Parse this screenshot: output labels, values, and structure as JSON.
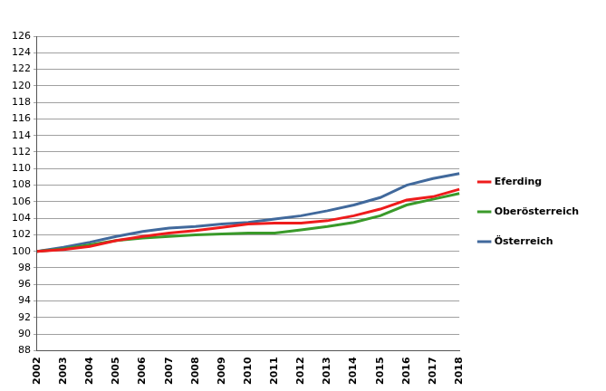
{
  "chart_data": {
    "type": "line",
    "categories": [
      "2002",
      "2003",
      "2004",
      "2005",
      "2006",
      "2007",
      "2008",
      "2009",
      "2010",
      "2011",
      "2012",
      "2013",
      "2014",
      "2015",
      "2016",
      "2017",
      "2018"
    ],
    "series": [
      {
        "name": "Eferding",
        "color": "#ee1c1c",
        "values": [
          100,
          100.2,
          100.6,
          101.3,
          101.8,
          102.2,
          102.5,
          102.9,
          103.3,
          103.4,
          103.4,
          103.7,
          104.3,
          105.1,
          106.2,
          106.6,
          107.5
        ]
      },
      {
        "name": "Oberösterreich",
        "color": "#3a9a2a",
        "values": [
          100,
          100.3,
          100.8,
          101.3,
          101.6,
          101.8,
          102.0,
          102.1,
          102.2,
          102.2,
          102.6,
          103.0,
          103.5,
          104.3,
          105.6,
          106.3,
          107.0
        ]
      },
      {
        "name": "Österreich",
        "color": "#41699c",
        "values": [
          100,
          100.5,
          101.1,
          101.8,
          102.4,
          102.8,
          103.0,
          103.3,
          103.5,
          103.9,
          104.3,
          104.9,
          105.6,
          106.5,
          108.0,
          108.8,
          109.4
        ]
      }
    ],
    "ylim": [
      88,
      126
    ],
    "yticks": [
      88,
      90,
      92,
      94,
      96,
      98,
      100,
      102,
      104,
      106,
      108,
      110,
      112,
      114,
      116,
      118,
      120,
      122,
      124,
      126
    ],
    "grid": true,
    "legend": "right"
  }
}
